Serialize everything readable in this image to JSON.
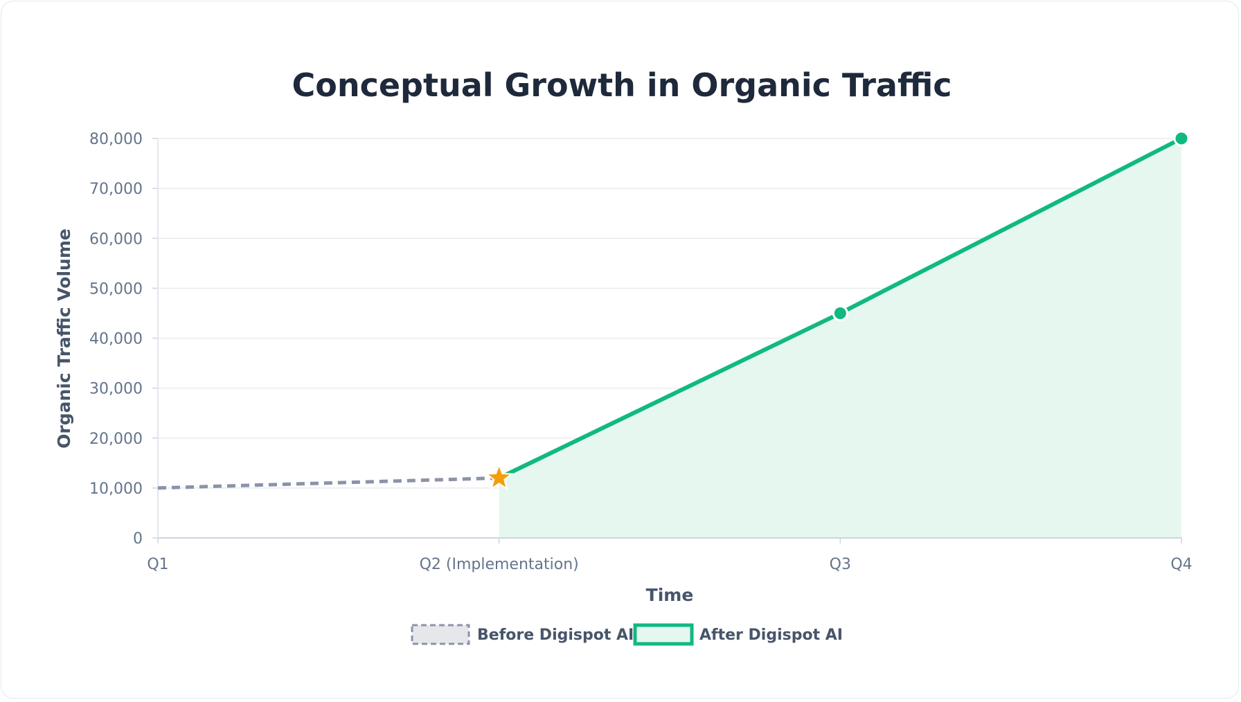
{
  "chart_data": {
    "type": "line",
    "title": "Conceptual Growth in Organic Traffic",
    "xlabel": "Time",
    "ylabel": "Organic Traffic Volume",
    "categories": [
      "Q1",
      "Q2 (Implementation)",
      "Q3",
      "Q4"
    ],
    "ylim": [
      0,
      80000
    ],
    "yticks": [
      {
        "value": 0,
        "label": "0"
      },
      {
        "value": 10000,
        "label": "10,000"
      },
      {
        "value": 20000,
        "label": "20,000"
      },
      {
        "value": 30000,
        "label": "30,000"
      },
      {
        "value": 40000,
        "label": "40,000"
      },
      {
        "value": 50000,
        "label": "50,000"
      },
      {
        "value": 60000,
        "label": "60,000"
      },
      {
        "value": 70000,
        "label": "70,000"
      },
      {
        "value": 80000,
        "label": "80,000"
      }
    ],
    "grid": true,
    "legend_position": "bottom-center",
    "series": [
      {
        "name": "Before Digispot AI",
        "style": "dashed",
        "color": "#8b93a8",
        "values": [
          10000,
          12000,
          null,
          null
        ]
      },
      {
        "name": "After Digispot AI",
        "style": "solid-filled",
        "color": "#10b981",
        "fill": "#e6f7f0",
        "values": [
          null,
          12000,
          45000,
          80000
        ]
      }
    ],
    "annotations": [
      {
        "category": "Q2 (Implementation)",
        "value": 12000,
        "marker": "star",
        "color": "#f59e0b"
      }
    ]
  }
}
